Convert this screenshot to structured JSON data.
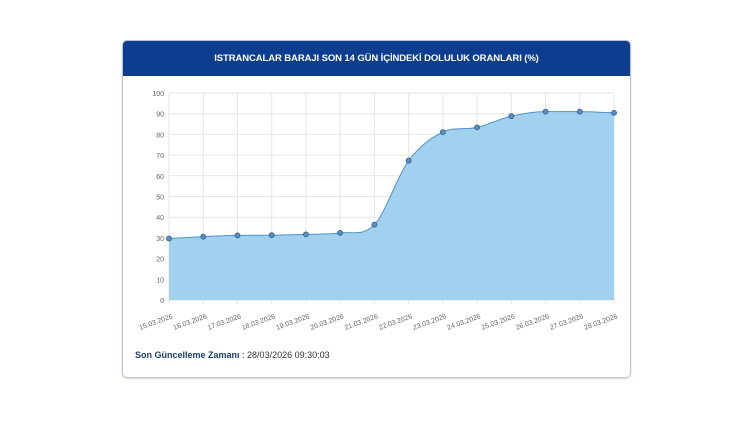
{
  "title": "ISTRANCALAR BARAJI SON 14 GÜN İÇİNDEKİ DOLULUK ORANLARI (%)",
  "footer": {
    "label": "Son Güncelleme Zamanı",
    "separator": " : ",
    "value": "28/03/2026 09:30:03"
  },
  "colors": {
    "header": "#0d3d8f",
    "fill": "#9dcfee",
    "line": "#4f93c7",
    "point": "#5b8fbf"
  },
  "chart_data": {
    "type": "area",
    "title": "ISTRANCALAR BARAJI SON 14 GÜN İÇİNDEKİ DOLULUK ORANLARI (%)",
    "categories": [
      "15.03.2026",
      "16.03.2026",
      "17.03.2026",
      "18.03.2026",
      "19.03.2026",
      "20.03.2026",
      "21.03.2026",
      "22.03.2026",
      "23.03.2026",
      "24.03.2026",
      "25.03.2026",
      "26.03.2026",
      "27.03.2026",
      "28.03.2026"
    ],
    "values": [
      29.7,
      30.6,
      31.2,
      31.3,
      31.7,
      32.4,
      36.4,
      67.3,
      81.1,
      83.4,
      88.8,
      91.0,
      91.0,
      90.4
    ],
    "ylim": [
      0,
      100
    ],
    "yticks": [
      0,
      10,
      20,
      30,
      40,
      50,
      60,
      70,
      80,
      90,
      100
    ],
    "grid": true,
    "xlabel": "",
    "ylabel": ""
  }
}
